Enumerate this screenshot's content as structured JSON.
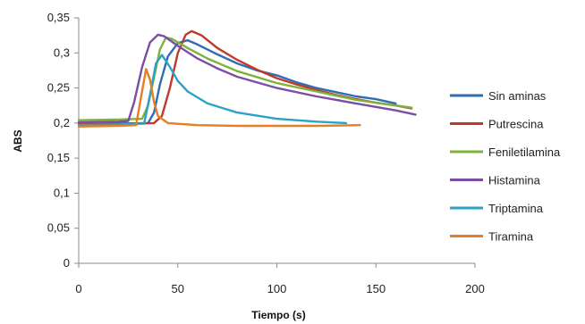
{
  "chart_data": {
    "type": "line",
    "title": "",
    "xlabel": "Tiempo (s)",
    "ylabel": "ABS",
    "xlim": [
      0,
      200
    ],
    "ylim": [
      0,
      0.35
    ],
    "xticks": [
      0,
      50,
      100,
      150,
      200
    ],
    "yticks": [
      0,
      0.05,
      0.1,
      0.15,
      0.2,
      0.25,
      0.3,
      0.35
    ],
    "xtick_labels": [
      "0",
      "50",
      "100",
      "150",
      "200"
    ],
    "ytick_labels": [
      "0",
      "0,05",
      "0,1",
      "0,15",
      "0,2",
      "0,25",
      "0,3",
      "0,35"
    ],
    "grid": false,
    "legend_position": "right",
    "series": [
      {
        "name": "Sin aminas",
        "color": "#2E6DB4",
        "points": [
          [
            0,
            0.198
          ],
          [
            20,
            0.199
          ],
          [
            35,
            0.2
          ],
          [
            38,
            0.215
          ],
          [
            41,
            0.255
          ],
          [
            45,
            0.295
          ],
          [
            50,
            0.314
          ],
          [
            55,
            0.318
          ],
          [
            60,
            0.312
          ],
          [
            70,
            0.298
          ],
          [
            80,
            0.285
          ],
          [
            90,
            0.275
          ],
          [
            100,
            0.268
          ],
          [
            110,
            0.258
          ],
          [
            120,
            0.25
          ],
          [
            130,
            0.244
          ],
          [
            140,
            0.238
          ],
          [
            150,
            0.234
          ],
          [
            160,
            0.228
          ]
        ]
      },
      {
        "name": "Putrescina",
        "color": "#C0392B",
        "points": [
          [
            0,
            0.198
          ],
          [
            20,
            0.199
          ],
          [
            38,
            0.2
          ],
          [
            42,
            0.21
          ],
          [
            46,
            0.25
          ],
          [
            50,
            0.3
          ],
          [
            54,
            0.326
          ],
          [
            57,
            0.331
          ],
          [
            62,
            0.325
          ],
          [
            70,
            0.307
          ],
          [
            80,
            0.29
          ],
          [
            90,
            0.276
          ],
          [
            100,
            0.264
          ],
          [
            110,
            0.255
          ],
          [
            120,
            0.247
          ],
          [
            130,
            0.24
          ],
          [
            140,
            0.234
          ],
          [
            150,
            0.229
          ],
          [
            160,
            0.225
          ],
          [
            168,
            0.221
          ]
        ]
      },
      {
        "name": "Feniletilamina",
        "color": "#7FB23A",
        "points": [
          [
            0,
            0.204
          ],
          [
            20,
            0.205
          ],
          [
            32,
            0.206
          ],
          [
            35,
            0.225
          ],
          [
            38,
            0.265
          ],
          [
            41,
            0.305
          ],
          [
            44,
            0.322
          ],
          [
            47,
            0.32
          ],
          [
            55,
            0.307
          ],
          [
            65,
            0.292
          ],
          [
            80,
            0.274
          ],
          [
            100,
            0.257
          ],
          [
            120,
            0.245
          ],
          [
            140,
            0.233
          ],
          [
            160,
            0.225
          ],
          [
            168,
            0.222
          ]
        ]
      },
      {
        "name": "Histamina",
        "color": "#7B4EA6",
        "points": [
          [
            0,
            0.201
          ],
          [
            20,
            0.202
          ],
          [
            25,
            0.203
          ],
          [
            28,
            0.23
          ],
          [
            32,
            0.28
          ],
          [
            36,
            0.315
          ],
          [
            40,
            0.326
          ],
          [
            43,
            0.324
          ],
          [
            50,
            0.31
          ],
          [
            60,
            0.292
          ],
          [
            70,
            0.278
          ],
          [
            80,
            0.266
          ],
          [
            100,
            0.25
          ],
          [
            120,
            0.238
          ],
          [
            140,
            0.228
          ],
          [
            160,
            0.218
          ],
          [
            170,
            0.212
          ]
        ]
      },
      {
        "name": "Triptamina",
        "color": "#2AA3C4",
        "points": [
          [
            0,
            0.197
          ],
          [
            20,
            0.198
          ],
          [
            33,
            0.199
          ],
          [
            36,
            0.24
          ],
          [
            39,
            0.285
          ],
          [
            42,
            0.297
          ],
          [
            46,
            0.28
          ],
          [
            50,
            0.26
          ],
          [
            55,
            0.245
          ],
          [
            65,
            0.228
          ],
          [
            80,
            0.215
          ],
          [
            100,
            0.206
          ],
          [
            120,
            0.202
          ],
          [
            135,
            0.2
          ]
        ]
      },
      {
        "name": "Tiramina",
        "color": "#E67E22",
        "points": [
          [
            0,
            0.195
          ],
          [
            20,
            0.196
          ],
          [
            29,
            0.197
          ],
          [
            31,
            0.23
          ],
          [
            34,
            0.277
          ],
          [
            36,
            0.262
          ],
          [
            38,
            0.23
          ],
          [
            40,
            0.21
          ],
          [
            45,
            0.2
          ],
          [
            60,
            0.197
          ],
          [
            80,
            0.196
          ],
          [
            100,
            0.196
          ],
          [
            120,
            0.196
          ],
          [
            142,
            0.197
          ]
        ]
      }
    ]
  }
}
